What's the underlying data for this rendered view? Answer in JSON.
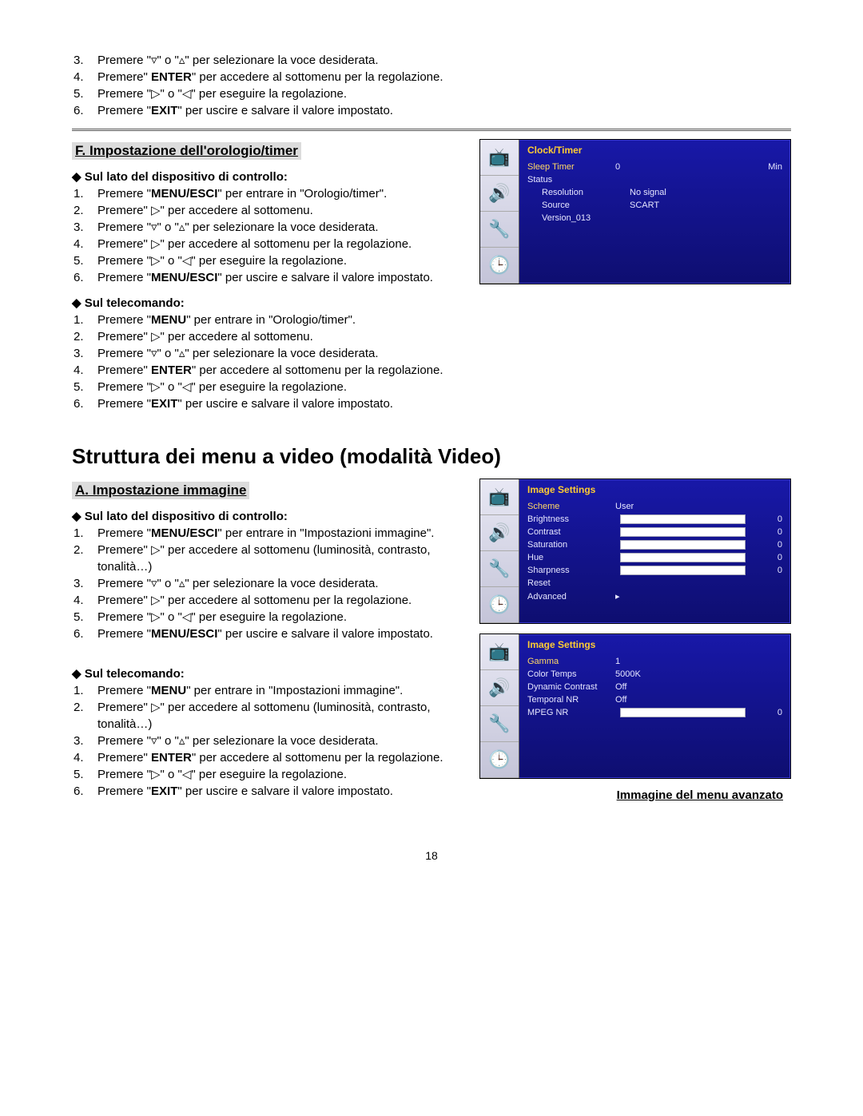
{
  "intro_list": [
    {
      "n": "3.",
      "html": "Premere \"▿\" o \"▵\" per selezionare la voce desiderata."
    },
    {
      "n": "4.",
      "html": "Premere\" <b>ENTER</b>\" per accedere al sottomenu per la regolazione."
    },
    {
      "n": "5.",
      "html": "Premere \"▷\" o \"◁\" per eseguire la regolazione."
    },
    {
      "n": "6.",
      "html": "Premere \"<b>EXIT</b>\" per uscire e salvare il valore impostato."
    }
  ],
  "sectionF": {
    "title": "F. Impostazione dell'orologio/timer",
    "sub1": "Sul lato del dispositivo di controllo:",
    "list1": [
      {
        "n": "1.",
        "html": "Premere \"<b>MENU/ESCI</b>\" per entrare in \"Orologio/timer\"."
      },
      {
        "n": "2.",
        "html": "Premere\" ▷\" per accedere al sottomenu."
      },
      {
        "n": "3.",
        "html": "Premere \"▿\" o \"▵\" per selezionare la voce desiderata."
      },
      {
        "n": "4.",
        "html": "Premere\" ▷\" per accedere al sottomenu per la regolazione."
      },
      {
        "n": "5.",
        "html": "Premere \"▷\" o \"◁\" per eseguire la regolazione."
      },
      {
        "n": "6.",
        "html": "Premere \"<b>MENU/ESCI</b>\" per uscire e salvare il valore impostato."
      }
    ],
    "sub2": "Sul telecomando:",
    "list2": [
      {
        "n": "1.",
        "html": "Premere \"<b>MENU</b>\" per entrare in \"Orologio/timer\"."
      },
      {
        "n": "2.",
        "html": "Premere\" ▷\" per accedere al sottomenu."
      },
      {
        "n": "3.",
        "html": "Premere \"▿\" o \"▵\" per selezionare la voce desiderata."
      },
      {
        "n": "4.",
        "html": "Premere\" <b>ENTER</b>\" per accedere al sottomenu per la regolazione."
      },
      {
        "n": "5.",
        "html": "Premere \"▷\" o \"◁\" per eseguire la regolazione."
      },
      {
        "n": "6.",
        "html": "Premere \"<b>EXIT</b>\" per uscire e salvare il valore impostato."
      }
    ]
  },
  "main_head": "Struttura dei menu a video (modalità Video)",
  "sectionA": {
    "title": "A. Impostazione immagine",
    "sub1": "Sul lato del dispositivo di controllo:",
    "list1": [
      {
        "n": "1.",
        "html": "Premere \"<b>MENU/ESCI</b>\" per entrare in \"Impostazioni immagine\"."
      },
      {
        "n": "2.",
        "html": "Premere\" ▷\" per accedere al sottomenu (luminosità, contrasto, tonalità…)"
      },
      {
        "n": "3.",
        "html": "Premere \"▿\" o \"▵\" per selezionare la voce desiderata."
      },
      {
        "n": "4.",
        "html": "Premere\" ▷\" per accedere al sottomenu per la regolazione."
      },
      {
        "n": "5.",
        "html": "Premere \"▷\" o \"◁\" per eseguire la regolazione."
      },
      {
        "n": "6.",
        "html": "Premere \"<b>MENU/ESCI</b>\" per uscire e salvare il valore impostato."
      }
    ],
    "sub2": "Sul telecomando:",
    "list2": [
      {
        "n": "1.",
        "html": "Premere \"<b>MENU</b>\" per entrare in \"Impostazioni immagine\"."
      },
      {
        "n": "2.",
        "html": "Premere\" ▷\" per accedere al sottomenu (luminosità, contrasto, tonalità…)"
      },
      {
        "n": "3.",
        "html": "Premere \"▿\" o \"▵\" per selezionare la voce desiderata."
      },
      {
        "n": "4.",
        "html": "Premere\" <b>ENTER</b>\" per accedere al sottomenu per la regolazione."
      },
      {
        "n": "5.",
        "html": "Premere \"▷\" o \"◁\" per eseguire la regolazione."
      },
      {
        "n": "6.",
        "html": "Premere \"<b>EXIT</b>\" per uscire e salvare il valore impostato."
      }
    ]
  },
  "caption": "Immagine del menu avanzato",
  "page_number": "18",
  "osd1": {
    "title": "Clock/Timer",
    "rows": [
      {
        "k": "Sleep Timer",
        "v": "0",
        "v2": "Min",
        "sel": true
      },
      {
        "k": "Status",
        "v": "",
        "v2": ""
      },
      {
        "indent": true,
        "k": "Resolution",
        "v": "No signal"
      },
      {
        "indent": true,
        "k": "Source",
        "v": "SCART"
      },
      {
        "indent": true,
        "k": "Version_013",
        "v": ""
      }
    ]
  },
  "osd2": {
    "title": "Image Settings",
    "rows": [
      {
        "k": "Scheme",
        "v": "User",
        "sel": true
      },
      {
        "k": "Brightness",
        "bar": true,
        "v2": "0"
      },
      {
        "k": "Contrast",
        "bar": true,
        "v2": "0"
      },
      {
        "k": "Saturation",
        "bar": true,
        "v2": "0"
      },
      {
        "k": "Hue",
        "bar": true,
        "v2": "0"
      },
      {
        "k": "Sharpness",
        "bar": true,
        "v2": "0"
      },
      {
        "k": "Reset"
      },
      {
        "k": "Advanced",
        "v": "▸"
      }
    ]
  },
  "osd3": {
    "title": "Image Settings",
    "rows": [
      {
        "k": "Gamma",
        "v": "1",
        "sel": true
      },
      {
        "k": "Color Temps",
        "v": "5000K"
      },
      {
        "k": "Dynamic Contrast",
        "v": "Off"
      },
      {
        "k": "Temporal NR",
        "v": "Off"
      },
      {
        "k": "MPEG NR",
        "bar": true,
        "v2": "0"
      }
    ]
  },
  "osd_sidebar_icons": [
    "📺",
    "🔊",
    "🔧",
    "🕒"
  ],
  "colors": {
    "osd_bg_top": "#1818a8",
    "osd_bg_bottom": "#0e0e70",
    "osd_title": "#ffcc33",
    "osd_text": "#e6e6ff",
    "section_bg": "#dcdcdc"
  }
}
